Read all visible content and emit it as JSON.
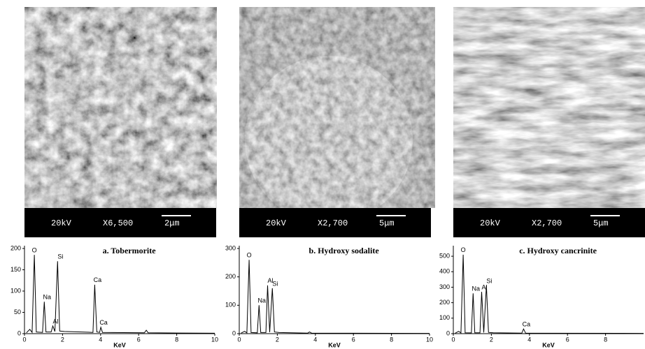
{
  "micrographs": [
    {
      "voltage": "20kV",
      "magnification": "X6,500",
      "scale": "2μm"
    },
    {
      "voltage": "20kV",
      "magnification": "X2,700",
      "scale": "5μm"
    },
    {
      "voltage": "20kV",
      "magnification": "X2,700",
      "scale": "5μm"
    }
  ],
  "chart_data": [
    {
      "type": "line",
      "title": "a. Tobermorite",
      "x_label": "KeV",
      "color": "#000000",
      "xlim": [
        0,
        10
      ],
      "xticks": [
        0,
        2,
        4,
        6,
        8,
        10
      ],
      "ylim": [
        0,
        200
      ],
      "yticks": [
        0,
        50,
        100,
        150,
        200
      ],
      "x": [
        0.1,
        0.28,
        0.4,
        0.52,
        0.62,
        0.95,
        1.04,
        1.13,
        1.4,
        1.49,
        1.6,
        1.74,
        1.85,
        2.1,
        3.6,
        3.69,
        3.8,
        3.95,
        4.01,
        4.1,
        6.3,
        6.4,
        6.5,
        10
      ],
      "values": [
        2,
        10,
        3,
        185,
        4,
        3,
        75,
        4,
        4,
        18,
        5,
        170,
        6,
        5,
        3,
        115,
        4,
        3,
        15,
        3,
        2,
        8,
        2,
        1
      ],
      "annotations": [
        {
          "text": "O",
          "x": 0.52,
          "y": 185
        },
        {
          "text": "Na",
          "x": 1.04,
          "y": 75
        },
        {
          "text": "Al",
          "x": 1.49,
          "y": 18
        },
        {
          "text": "Si",
          "x": 1.74,
          "y": 170
        },
        {
          "text": "Ca",
          "x": 3.69,
          "y": 115
        },
        {
          "text": "Ca",
          "x": 4.01,
          "y": 15
        }
      ]
    },
    {
      "type": "line",
      "title": "b. Hydroxy sodalite",
      "x_label": "KeV",
      "color": "#000000",
      "xlim": [
        0,
        10
      ],
      "xticks": [
        0,
        2,
        4,
        6,
        8,
        10
      ],
      "ylim": [
        0,
        300
      ],
      "yticks": [
        0,
        100,
        200,
        300
      ],
      "x": [
        0.1,
        0.28,
        0.4,
        0.52,
        0.62,
        0.95,
        1.04,
        1.13,
        1.4,
        1.49,
        1.6,
        1.74,
        1.85,
        2.1,
        3.6,
        3.69,
        3.8,
        10
      ],
      "values": [
        2,
        8,
        3,
        260,
        4,
        3,
        100,
        4,
        4,
        170,
        5,
        160,
        6,
        4,
        2,
        6,
        2,
        1
      ],
      "annotations": [
        {
          "text": "O",
          "x": 0.52,
          "y": 260
        },
        {
          "text": "Na",
          "x": 1.04,
          "y": 100
        },
        {
          "text": "Al",
          "x": 1.49,
          "y": 170
        },
        {
          "text": "Si",
          "x": 1.74,
          "y": 160
        }
      ]
    },
    {
      "type": "line",
      "title": "c. Hydroxy cancrinite",
      "x_label": "KeV",
      "color": "#000000",
      "xlim": [
        0,
        10
      ],
      "xticks": [
        0,
        2,
        4,
        6,
        8
      ],
      "ylim": [
        0,
        550
      ],
      "yticks": [
        0,
        100,
        200,
        300,
        400,
        500
      ],
      "x": [
        0.1,
        0.28,
        0.4,
        0.52,
        0.62,
        0.95,
        1.04,
        1.13,
        1.4,
        1.49,
        1.6,
        1.74,
        1.85,
        2.1,
        3.6,
        3.69,
        3.8,
        10
      ],
      "values": [
        3,
        15,
        5,
        510,
        6,
        5,
        260,
        6,
        6,
        270,
        7,
        310,
        8,
        6,
        3,
        30,
        3,
        2
      ],
      "annotations": [
        {
          "text": "O",
          "x": 0.52,
          "y": 510
        },
        {
          "text": "Na",
          "x": 1.04,
          "y": 260
        },
        {
          "text": "Al",
          "x": 1.49,
          "y": 270
        },
        {
          "text": "Si",
          "x": 1.74,
          "y": 310
        },
        {
          "text": "Ca",
          "x": 3.69,
          "y": 30
        }
      ]
    }
  ]
}
